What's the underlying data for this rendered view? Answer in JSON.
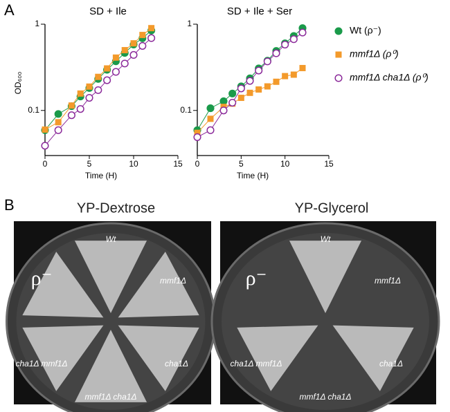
{
  "chart_data": [
    {
      "type": "line",
      "title": "SD + Ile",
      "xlabel": "Time (H)",
      "ylabel": "OD₆₀₀",
      "log_y": true,
      "xlim": [
        0,
        15
      ],
      "xticks": [
        0,
        5,
        10,
        15
      ],
      "ylim": [
        0.03,
        1
      ],
      "yticks": [
        0.1,
        1
      ],
      "x": [
        0,
        1.5,
        3,
        4,
        5,
        6,
        7,
        8,
        9,
        10,
        11,
        12
      ],
      "series": [
        {
          "name": "Wt (ρ⁻)",
          "color": "#1a9a4a",
          "marker": "circle",
          "values": [
            0.059,
            0.091,
            0.112,
            0.145,
            0.182,
            0.232,
            0.296,
            0.371,
            0.464,
            0.581,
            0.688,
            0.845
          ]
        },
        {
          "name": "mmf1Δ (ρ⁰)",
          "color": "#f39a2b",
          "marker": "square",
          "values": [
            0.06,
            0.073,
            0.114,
            0.157,
            0.189,
            0.245,
            0.307,
            0.41,
            0.5,
            0.6,
            0.75,
            0.9
          ]
        },
        {
          "name": "mmf1Δ cha1Δ (ρ⁰)",
          "color": "#8b2a9a",
          "marker": "open-circle",
          "values": [
            0.039,
            0.059,
            0.088,
            0.104,
            0.14,
            0.172,
            0.224,
            0.28,
            0.35,
            0.44,
            0.56,
            0.69
          ]
        }
      ]
    },
    {
      "type": "line",
      "title": "SD + Ile + Ser",
      "xlabel": "Time (H)",
      "log_y": true,
      "xlim": [
        0,
        15
      ],
      "xticks": [
        0,
        5,
        10,
        15
      ],
      "ylim": [
        0.03,
        1
      ],
      "yticks": [
        0.1,
        1
      ],
      "x": [
        0,
        1.5,
        3,
        4,
        5,
        6,
        7,
        8,
        9,
        10,
        11,
        12
      ],
      "series": [
        {
          "name": "Wt (ρ⁻)",
          "color": "#1a9a4a",
          "marker": "circle",
          "values": [
            0.059,
            0.106,
            0.128,
            0.157,
            0.19,
            0.236,
            0.307,
            0.377,
            0.49,
            0.6,
            0.73,
            0.9
          ]
        },
        {
          "name": "mmf1Δ (ρ⁰)",
          "color": "#f39a2b",
          "marker": "square",
          "values": [
            0.055,
            0.08,
            0.11,
            0.12,
            0.14,
            0.16,
            0.175,
            0.19,
            0.215,
            0.25,
            0.26,
            0.31
          ]
        },
        {
          "name": "mmf1Δ cha1Δ (ρ⁰)",
          "color": "#8b2a9a",
          "marker": "open-circle",
          "values": [
            0.049,
            0.059,
            0.1,
            0.123,
            0.18,
            0.22,
            0.29,
            0.37,
            0.46,
            0.58,
            0.67,
            0.8
          ]
        }
      ]
    }
  ],
  "figure": {
    "panel_labels": [
      "A",
      "B"
    ],
    "plates": [
      {
        "title": "YP-Dextrose",
        "labels": [
          "Wt",
          "ρ⁻",
          "mmf1Δ",
          "cha1Δ mmf1Δ",
          "cha1Δ",
          "mmf1Δ cha1Δ"
        ]
      },
      {
        "title": "YP-Glycerol",
        "labels": [
          "Wt",
          "ρ⁻",
          "mmf1Δ",
          "cha1Δ mmf1Δ",
          "cha1Δ",
          "mmf1Δ cha1Δ"
        ]
      }
    ]
  }
}
